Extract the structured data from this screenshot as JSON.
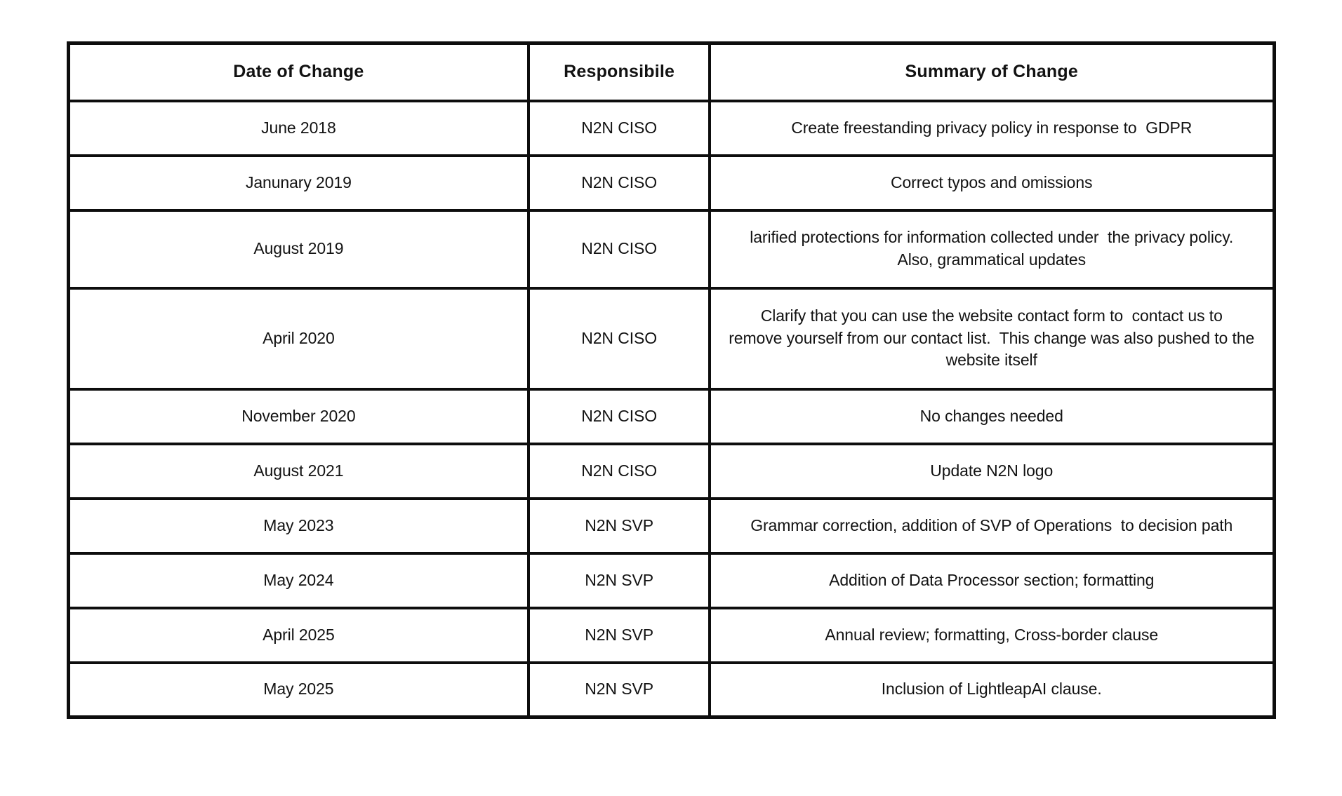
{
  "page": {
    "background_color": "#ffffff",
    "border_color": "#0d0d0d",
    "text_color": "#121212"
  },
  "table": {
    "name": "revision-history",
    "columns": [
      {
        "label": "Date of Change"
      },
      {
        "label": "Responsibile"
      },
      {
        "label": "Summary of Change"
      }
    ],
    "rows": [
      {
        "date": "June 2018",
        "responsible": "N2N CISO",
        "summary": "Create freestanding privacy policy in response to  GDPR"
      },
      {
        "date": "Janunary 2019",
        "responsible": "N2N CISO",
        "summary": "Correct typos and omissions"
      },
      {
        "date": "August 2019",
        "responsible": "N2N CISO",
        "summary": "larified protections for information collected under  the privacy policy.\nAlso, grammatical updates"
      },
      {
        "date": "April 2020",
        "responsible": "N2N CISO",
        "summary": "Clarify that you can use the website contact form to  contact us to\nremove yourself from our contact list.  This change was also pushed to the\nwebsite itself"
      },
      {
        "date": "November 2020",
        "responsible": "N2N CISO",
        "summary": "No changes needed"
      },
      {
        "date": "August 2021",
        "responsible": "N2N CISO",
        "summary": "Update N2N logo"
      },
      {
        "date": "May 2023",
        "responsible": "N2N SVP",
        "summary": "Grammar correction, addition of SVP of Operations  to decision path"
      },
      {
        "date": "May 2024",
        "responsible": "N2N SVP",
        "summary": "Addition of Data Processor section; formatting"
      },
      {
        "date": "April 2025",
        "responsible": "N2N SVP",
        "summary": "Annual review; formatting, Cross-border clause"
      },
      {
        "date": "May 2025",
        "responsible": "N2N SVP",
        "summary": "Inclusion of LightleapAI clause."
      }
    ]
  }
}
